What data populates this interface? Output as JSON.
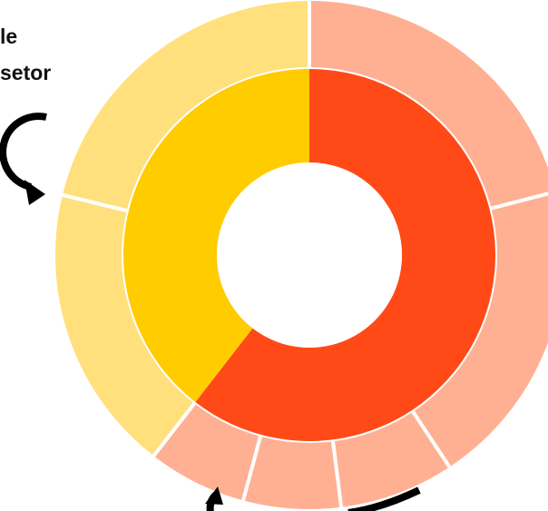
{
  "labels": {
    "line1": "le",
    "line2": "setor"
  },
  "chart_data": {
    "type": "sunburst",
    "inner_ring": [
      {
        "name": "",
        "share": 0.605,
        "color": "#FF4A17"
      },
      {
        "name": "",
        "share": 0.395,
        "color": "#FFCC00"
      }
    ],
    "outer_ring": [
      {
        "parent": 0,
        "share": 0.21,
        "color": "#FFB092"
      },
      {
        "parent": 0,
        "share": 0.197,
        "color": "#FFB092"
      },
      {
        "parent": 0,
        "share": 0.073,
        "color": "#FFB092"
      },
      {
        "parent": 0,
        "share": 0.062,
        "color": "#FFB092"
      },
      {
        "parent": 0,
        "share": 0.063,
        "color": "#FFB092"
      },
      {
        "parent": 1,
        "share": 0.183,
        "color": "#FFE07D"
      },
      {
        "parent": 1,
        "share": 0.212,
        "color": "#FFE07D"
      }
    ],
    "center_color": "#FFFFFF",
    "separator_color": "#FFFFFF",
    "arrow_color": "#000000"
  }
}
